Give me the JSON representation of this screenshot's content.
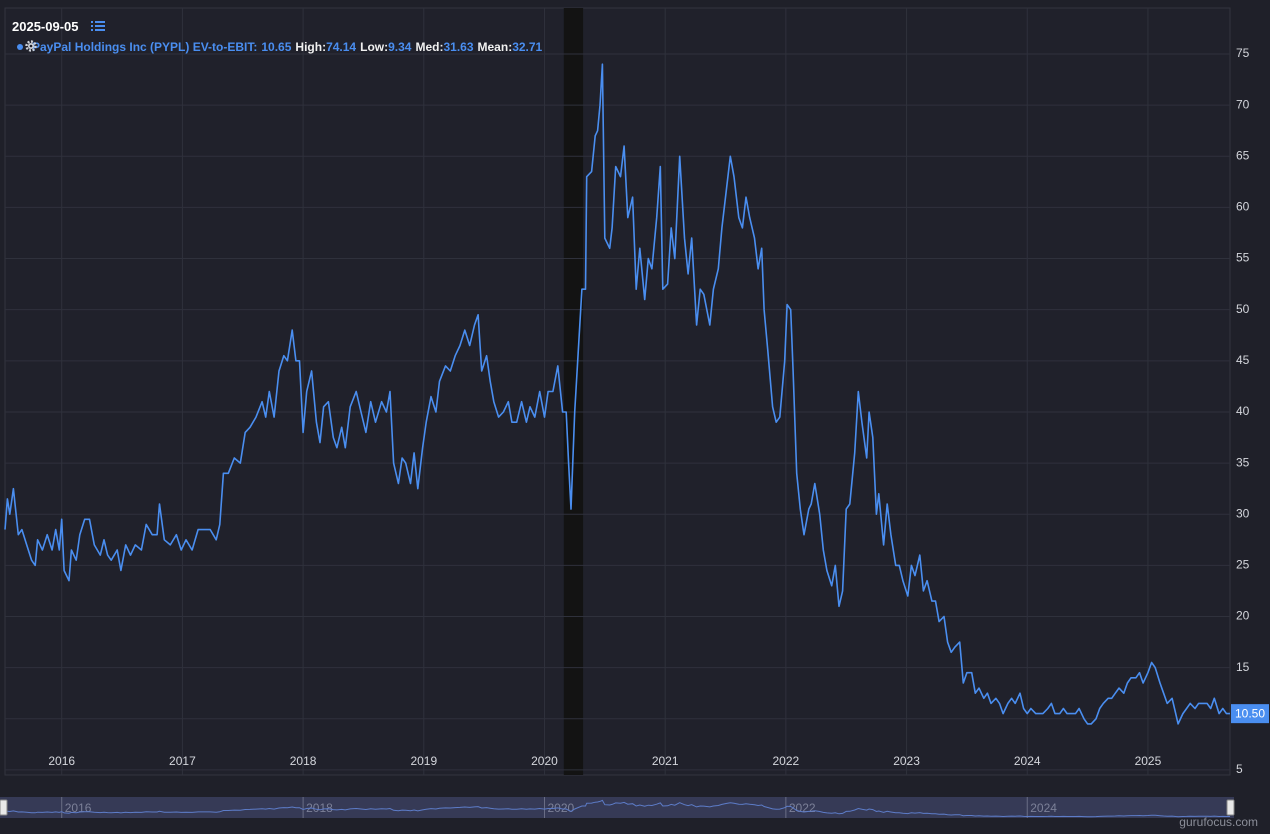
{
  "header": {
    "date": "2025-09-05"
  },
  "watermark": "gurufocus.com",
  "chart_data": {
    "type": "line",
    "current_value": 10.65,
    "stats": [
      {
        "label": "High",
        "value": 74.14
      },
      {
        "label": "Low",
        "value": 9.34
      },
      {
        "label": "Med",
        "value": 31.63
      },
      {
        "label": "Mean",
        "value": 32.71
      }
    ],
    "last_value": {
      "value": 10.5,
      "label": "10.50"
    },
    "shaded_range": [
      2020.16,
      2020.32
    ],
    "xlim": [
      2015.53,
      2025.68
    ],
    "xticks": [
      2016,
      2017,
      2018,
      2019,
      2020,
      2021,
      2022,
      2023,
      2024,
      2025
    ],
    "ylim": [
      4.5,
      79.5
    ],
    "yticks": [
      5,
      10,
      15,
      20,
      25,
      30,
      35,
      40,
      45,
      50,
      55,
      60,
      65,
      70,
      75
    ],
    "grid": true,
    "x": [
      2015.53,
      2015.55,
      2015.57,
      2015.6,
      2015.64,
      2015.67,
      2015.71,
      2015.75,
      2015.78,
      2015.8,
      2015.84,
      2015.88,
      2015.92,
      2015.95,
      2015.98,
      2016.0,
      2016.02,
      2016.06,
      2016.08,
      2016.12,
      2016.15,
      2016.19,
      2016.23,
      2016.27,
      2016.32,
      2016.35,
      2016.38,
      2016.41,
      2016.46,
      2016.49,
      2016.53,
      2016.57,
      2016.61,
      2016.66,
      2016.7,
      2016.75,
      2016.79,
      2016.81,
      2016.85,
      2016.9,
      2016.95,
      2016.99,
      2017.03,
      2017.08,
      2017.13,
      2017.18,
      2017.23,
      2017.28,
      2017.31,
      2017.34,
      2017.38,
      2017.43,
      2017.48,
      2017.52,
      2017.56,
      2017.61,
      2017.66,
      2017.69,
      2017.72,
      2017.76,
      2017.8,
      2017.84,
      2017.87,
      2017.91,
      2017.94,
      2017.97,
      2018.0,
      2018.03,
      2018.07,
      2018.11,
      2018.14,
      2018.17,
      2018.21,
      2018.25,
      2018.28,
      2018.32,
      2018.35,
      2018.39,
      2018.44,
      2018.48,
      2018.52,
      2018.56,
      2018.6,
      2018.65,
      2018.69,
      2018.72,
      2018.75,
      2018.79,
      2018.82,
      2018.85,
      2018.89,
      2018.92,
      2018.95,
      2018.99,
      2019.02,
      2019.06,
      2019.1,
      2019.13,
      2019.18,
      2019.22,
      2019.26,
      2019.3,
      2019.34,
      2019.38,
      2019.42,
      2019.45,
      2019.48,
      2019.52,
      2019.55,
      2019.58,
      2019.62,
      2019.66,
      2019.7,
      2019.73,
      2019.77,
      2019.81,
      2019.85,
      2019.88,
      2019.92,
      2019.96,
      2020.0,
      2020.03,
      2020.07,
      2020.11,
      2020.15,
      2020.18,
      2020.2,
      2020.22,
      2020.25,
      2020.28,
      2020.31,
      2020.34,
      2020.35,
      2020.39,
      2020.42,
      2020.44,
      2020.46,
      2020.48,
      2020.5,
      2020.54,
      2020.56,
      2020.59,
      2020.63,
      2020.66,
      2020.69,
      2020.73,
      2020.76,
      2020.79,
      2020.83,
      2020.86,
      2020.89,
      2020.93,
      2020.96,
      2020.98,
      2021.02,
      2021.05,
      2021.08,
      2021.12,
      2021.16,
      2021.19,
      2021.22,
      2021.26,
      2021.29,
      2021.32,
      2021.37,
      2021.4,
      2021.44,
      2021.47,
      2021.51,
      2021.54,
      2021.57,
      2021.61,
      2021.64,
      2021.67,
      2021.7,
      2021.74,
      2021.77,
      2021.8,
      2021.82,
      2021.85,
      2021.89,
      2021.92,
      2021.95,
      2021.99,
      2022.01,
      2022.04,
      2022.06,
      2022.09,
      2022.12,
      2022.15,
      2022.19,
      2022.21,
      2022.24,
      2022.28,
      2022.31,
      2022.34,
      2022.38,
      2022.41,
      2022.44,
      2022.47,
      2022.5,
      2022.53,
      2022.57,
      2022.6,
      2022.63,
      2022.67,
      2022.69,
      2022.72,
      2022.75,
      2022.77,
      2022.81,
      2022.84,
      2022.87,
      2022.91,
      2022.94,
      2022.97,
      2023.01,
      2023.04,
      2023.07,
      2023.11,
      2023.14,
      2023.17,
      2023.21,
      2023.24,
      2023.27,
      2023.31,
      2023.34,
      2023.37,
      2023.4,
      2023.44,
      2023.47,
      2023.5,
      2023.54,
      2023.57,
      2023.6,
      2023.64,
      2023.67,
      2023.7,
      2023.74,
      2023.77,
      2023.8,
      2023.84,
      2023.87,
      2023.9,
      2023.94,
      2023.97,
      2024.0,
      2024.03,
      2024.07,
      2024.1,
      2024.13,
      2024.17,
      2024.2,
      2024.23,
      2024.27,
      2024.3,
      2024.33,
      2024.37,
      2024.4,
      2024.43,
      2024.47,
      2024.5,
      2024.53,
      2024.57,
      2024.6,
      2024.63,
      2024.67,
      2024.7,
      2024.73,
      2024.76,
      2024.8,
      2024.83,
      2024.86,
      2024.9,
      2024.93,
      2024.96,
      2025.0,
      2025.03,
      2025.06,
      2025.1,
      2025.13,
      2025.16,
      2025.2,
      2025.23,
      2025.25,
      2025.29,
      2025.32,
      2025.35,
      2025.39,
      2025.42,
      2025.45,
      2025.49,
      2025.52,
      2025.55,
      2025.59,
      2025.62,
      2025.65,
      2025.68
    ],
    "series": [
      {
        "name": "PayPal Holdings Inc (PYPL) EV-to-EBIT",
        "color": "#4a8ef0",
        "values": [
          28.5,
          31.5,
          30,
          32.5,
          28,
          28.5,
          27,
          25.5,
          25,
          27.5,
          26.5,
          28,
          26.5,
          28.5,
          26.5,
          29.5,
          24.5,
          23.5,
          26.5,
          25.5,
          28,
          29.5,
          29.5,
          27,
          26,
          27.5,
          26,
          25.5,
          26.5,
          24.5,
          27,
          26,
          27,
          26.5,
          29,
          28,
          28,
          31,
          27.5,
          27,
          28,
          26.5,
          27.5,
          26.5,
          28.5,
          28.5,
          28.5,
          27.5,
          29,
          34,
          34,
          35.5,
          35,
          38,
          38.5,
          39.5,
          41,
          39.5,
          42,
          39.5,
          44,
          45.5,
          45,
          48,
          45,
          45,
          38,
          42,
          44,
          39,
          37,
          40.5,
          41,
          37.5,
          36.5,
          38.5,
          36.5,
          40.5,
          42,
          40,
          38,
          41,
          39,
          41,
          40,
          42,
          35,
          33,
          35.5,
          35,
          33,
          36,
          32.5,
          36.5,
          39,
          41.5,
          40,
          43,
          44.5,
          44,
          45.5,
          46.5,
          48,
          46.5,
          48.5,
          49.5,
          44,
          45.5,
          43,
          41,
          39.5,
          40,
          41,
          39,
          39,
          41,
          39,
          40.5,
          39.5,
          42,
          39.5,
          42,
          42,
          44.5,
          40,
          40,
          35,
          30.5,
          40,
          46,
          52,
          52,
          63,
          63.5,
          67,
          67.5,
          70,
          74,
          57,
          56,
          58,
          64,
          63,
          66,
          59,
          61,
          52,
          56,
          51,
          55,
          54,
          59,
          64,
          52,
          52.5,
          58,
          55,
          65,
          57,
          53.5,
          57,
          48.5,
          52,
          51.5,
          48.5,
          52,
          54,
          58,
          62,
          65,
          63,
          59,
          58,
          61,
          59,
          57,
          54,
          56,
          50,
          46,
          40.5,
          39,
          39.5,
          45,
          50.5,
          50,
          44,
          34,
          30.5,
          28,
          30.5,
          31,
          33,
          30,
          26.5,
          24.5,
          23,
          25,
          21,
          22.5,
          30.5,
          31,
          36,
          42,
          39,
          35.5,
          40,
          37.5,
          30,
          32,
          27,
          31,
          28,
          25,
          25,
          23.5,
          22,
          25,
          24,
          26,
          22.5,
          23.5,
          21.5,
          21.5,
          19.5,
          20,
          17.5,
          16.5,
          17,
          17.5,
          13.5,
          14.5,
          14.5,
          12.5,
          13,
          12,
          12.5,
          11.5,
          12,
          11.5,
          10.5,
          11.5,
          12,
          11.5,
          12.5,
          11,
          10.5,
          11,
          10.5,
          10.5,
          10.5,
          11,
          11.5,
          10.5,
          10.5,
          11,
          10.5,
          10.5,
          10.5,
          11,
          10,
          9.5,
          9.5,
          10,
          11,
          11.5,
          12,
          12,
          12.5,
          13,
          12.5,
          13.5,
          14,
          14,
          14.5,
          13.5,
          14.5,
          15.5,
          15,
          13.5,
          12.5,
          11.5,
          12,
          10.5,
          9.5,
          10.5,
          11,
          11.5,
          11,
          11.5,
          11.5,
          11.5,
          11,
          12,
          10.5,
          11,
          10.5,
          10.5
        ]
      }
    ]
  }
}
